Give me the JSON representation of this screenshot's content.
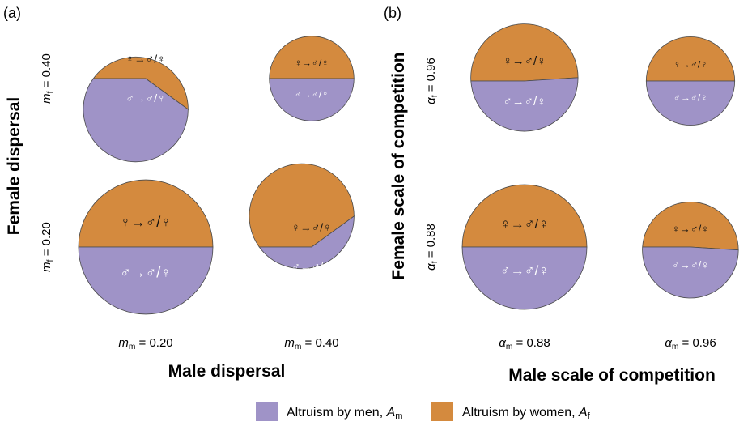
{
  "colors": {
    "men": "#9f93c7",
    "women": "#d48a3e",
    "edge": "#4a4a4a"
  },
  "symbols": {
    "female_row": "♀→♂/♀",
    "male_row": "♂→♂/♀"
  },
  "legend": [
    {
      "label": "Altruism by men, ",
      "var": "A",
      "sub": "m",
      "color": "#9f93c7"
    },
    {
      "label": "Altruism by women, ",
      "var": "A",
      "sub": "f",
      "color": "#d48a3e"
    }
  ],
  "chart_data": [
    {
      "panel_label": "(a)",
      "type": "pie",
      "xlabel": "Male dispersal",
      "ylabel": "Female dispersal",
      "row_params": [
        {
          "var": "m",
          "sub": "f",
          "text": " = 0.40"
        },
        {
          "var": "m",
          "sub": "f",
          "text": " = 0.20"
        }
      ],
      "col_params": [
        {
          "var": "m",
          "sub": "m",
          "text": " = 0.20"
        },
        {
          "var": "m",
          "sub": "m",
          "text": " = 0.40"
        }
      ],
      "cells": [
        {
          "row": 0,
          "col": 0,
          "relative_size": 0.78,
          "men_share": 0.6,
          "women_share": 0.4
        },
        {
          "row": 0,
          "col": 1,
          "relative_size": 0.63,
          "men_share": 0.5,
          "women_share": 0.5
        },
        {
          "row": 1,
          "col": 0,
          "relative_size": 1.0,
          "men_share": 0.5,
          "women_share": 0.5
        },
        {
          "row": 1,
          "col": 1,
          "relative_size": 0.78,
          "men_share": 0.4,
          "women_share": 0.6
        }
      ]
    },
    {
      "panel_label": "(b)",
      "type": "pie",
      "xlabel": "Male scale of competition",
      "ylabel": "Female scale of competition",
      "row_params": [
        {
          "var": "α",
          "sub": "f",
          "text": " = 0.96"
        },
        {
          "var": "α",
          "sub": "f",
          "text": " = 0.88"
        }
      ],
      "col_params": [
        {
          "var": "α",
          "sub": "m",
          "text": " = 0.88"
        },
        {
          "var": "α",
          "sub": "m",
          "text": " = 0.96"
        }
      ],
      "cells": [
        {
          "row": 0,
          "col": 0,
          "relative_size": 0.86,
          "men_share": 0.49,
          "women_share": 0.51
        },
        {
          "row": 0,
          "col": 1,
          "relative_size": 0.71,
          "men_share": 0.5,
          "women_share": 0.5
        },
        {
          "row": 1,
          "col": 0,
          "relative_size": 1.0,
          "men_share": 0.5,
          "women_share": 0.5
        },
        {
          "row": 1,
          "col": 1,
          "relative_size": 0.77,
          "men_share": 0.51,
          "women_share": 0.49
        }
      ]
    }
  ]
}
